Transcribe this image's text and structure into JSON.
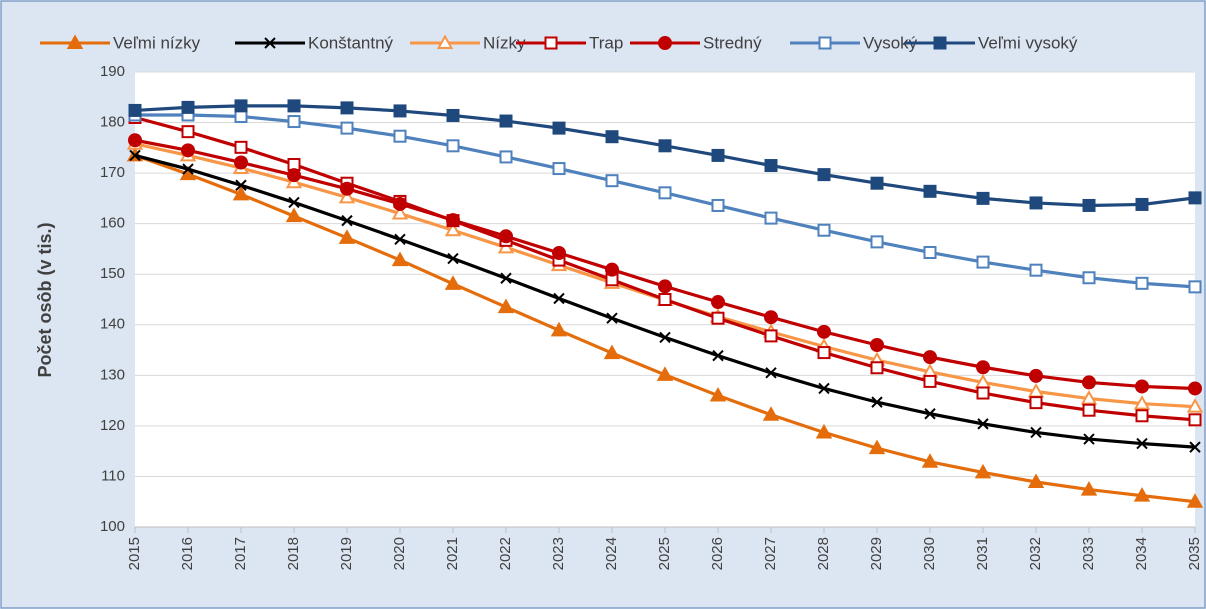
{
  "chart_data": {
    "type": "line",
    "y_label": "Počet osôb (v tis.)",
    "categories": [
      "2015",
      "2016",
      "2017",
      "2018",
      "2019",
      "2020",
      "2021",
      "2022",
      "2023",
      "2024",
      "2025",
      "2026",
      "2027",
      "2028",
      "2029",
      "2030",
      "2031",
      "2032",
      "2033",
      "2034",
      "2035"
    ],
    "ylim": [
      100,
      190
    ],
    "yticks": [
      100,
      110,
      120,
      130,
      140,
      150,
      160,
      170,
      180,
      190
    ],
    "grid": true,
    "legend": "top",
    "series": [
      {
        "name": "Veľmi nízky",
        "color": "#e46c0a",
        "marker": "triangle",
        "filled": true,
        "values": [
          173.5,
          169.8,
          165.8,
          161.5,
          157.2,
          152.8,
          148.1,
          143.5,
          138.9,
          134.4,
          130.1,
          126.0,
          122.2,
          118.7,
          115.6,
          112.9,
          110.8,
          108.9,
          107.4,
          106.2,
          105.0
        ]
      },
      {
        "name": "Konštantný",
        "color": "#000000",
        "marker": "x",
        "filled": false,
        "values": [
          173.5,
          170.8,
          167.6,
          164.2,
          160.6,
          156.9,
          153.1,
          149.2,
          145.2,
          141.3,
          137.5,
          133.9,
          130.5,
          127.4,
          124.7,
          122.4,
          120.4,
          118.7,
          117.4,
          116.5,
          115.8
        ]
      },
      {
        "name": "Nízky",
        "color": "#f79646",
        "marker": "triangle",
        "filled": false,
        "values": [
          175.8,
          173.5,
          171.0,
          168.2,
          165.2,
          162.0,
          158.7,
          155.3,
          151.8,
          148.3,
          144.9,
          141.6,
          138.6,
          135.7,
          133.0,
          130.7,
          128.6,
          126.8,
          125.4,
          124.4,
          123.8
        ]
      },
      {
        "name": "Trap",
        "color": "#c00000",
        "marker": "square",
        "filled": false,
        "values": [
          181.0,
          178.2,
          175.1,
          171.7,
          168.0,
          164.4,
          160.6,
          156.7,
          152.8,
          148.9,
          145.0,
          141.3,
          137.8,
          134.5,
          131.5,
          128.8,
          126.5,
          124.6,
          123.1,
          122.0,
          121.2
        ]
      },
      {
        "name": "Stredný",
        "color": "#c00000",
        "marker": "circle",
        "filled": true,
        "values": [
          176.5,
          174.5,
          172.1,
          169.6,
          166.9,
          163.9,
          160.7,
          157.5,
          154.2,
          150.9,
          147.6,
          144.5,
          141.5,
          138.6,
          136.0,
          133.6,
          131.6,
          129.9,
          128.6,
          127.8,
          127.4
        ]
      },
      {
        "name": "Vysoký",
        "color": "#4f81bd",
        "marker": "square",
        "filled": false,
        "values": [
          181.5,
          181.5,
          181.2,
          180.2,
          178.9,
          177.3,
          175.4,
          173.2,
          170.9,
          168.5,
          166.1,
          163.6,
          161.1,
          158.7,
          156.4,
          154.3,
          152.4,
          150.8,
          149.3,
          148.2,
          147.5
        ]
      },
      {
        "name": "Veľmi vysoký",
        "color": "#1f497d",
        "marker": "square",
        "filled": true,
        "values": [
          182.4,
          183.0,
          183.3,
          183.3,
          182.9,
          182.3,
          181.4,
          180.3,
          178.9,
          177.2,
          175.4,
          173.5,
          171.5,
          169.7,
          168.0,
          166.4,
          165.0,
          164.1,
          163.6,
          163.8,
          165.1
        ]
      }
    ]
  }
}
